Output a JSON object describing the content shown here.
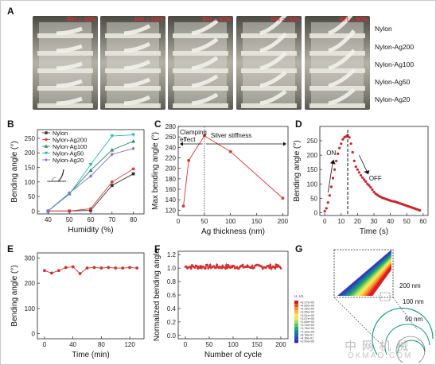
{
  "panels": {
    "A": "A",
    "B": "B",
    "C": "C",
    "D": "D",
    "E": "E",
    "F": "F",
    "G": "G"
  },
  "panel_a": {
    "rh_labels": [
      "RH = 40%",
      "RH = 50%",
      "RH = 60%",
      "RH = 70%",
      "RH = 80%"
    ],
    "samples": [
      "Nylon",
      "Nylon-Ag200",
      "Nylon-Ag100",
      "Nylon-Ag50",
      "Nylon-Ag20"
    ]
  },
  "panel_g": {
    "scale_labels": [
      "200 nm",
      "100 nm",
      "50 nm"
    ],
    "colorbar_labels": [
      "+5.27e+00",
      "+4.83e+00",
      "+4.39e+00",
      "+3.95e+00",
      "+3.51e+00",
      "+3.07e+00",
      "+2.63e+00",
      "+2.19e+00",
      "+1.76e+00",
      "+1.32e+00",
      "+8.78e-01",
      "+4.39e-01",
      "+0.00e+00"
    ],
    "colors": [
      "#d7191c",
      "#ef4b1f",
      "#fb8c2b",
      "#fdb54a",
      "#fee153",
      "#dbee5a",
      "#a3db5c",
      "#5fc262",
      "#2aa86d",
      "#178c86",
      "#1c6fa2",
      "#2849b5",
      "#2c2cb8"
    ]
  },
  "watermark": {
    "cn": "中 网 机 械",
    "en": "OKMAO.COM"
  },
  "chart_data": [
    {
      "id": "B",
      "type": "line",
      "xlabel": "Humidity (%)",
      "ylabel": "Bending angle (°)",
      "x": [
        40,
        50,
        60,
        70,
        80
      ],
      "xlim": [
        35,
        85
      ],
      "ylim": [
        -10,
        280
      ],
      "xticks": [
        40,
        50,
        60,
        70,
        80
      ],
      "yticks": [
        0,
        50,
        100,
        150,
        200,
        250
      ],
      "series": [
        {
          "name": "Nylon",
          "color": "#333333",
          "marker": "square",
          "values": [
            0,
            0,
            2,
            88,
            128
          ]
        },
        {
          "name": "Nylon-Ag200",
          "color": "#d93c3c",
          "marker": "circle",
          "values": [
            0,
            0,
            8,
            100,
            145
          ]
        },
        {
          "name": "Nylon-Ag100",
          "color": "#2a7f52",
          "marker": "triangle",
          "values": [
            0,
            60,
            140,
            210,
            240
          ]
        },
        {
          "name": "Nylon-Ag50",
          "color": "#2cb5b5",
          "marker": "down-triangle",
          "values": [
            0,
            58,
            160,
            258,
            262
          ]
        },
        {
          "name": "Nylon-Ag20",
          "color": "#8a6fc8",
          "marker": "diamond",
          "values": [
            0,
            62,
            120,
            195,
            215
          ]
        }
      ]
    },
    {
      "id": "C",
      "type": "line",
      "xlabel": "Ag thickness (nm)",
      "ylabel": "Max bending angle (°)",
      "x": [
        10,
        20,
        50,
        100,
        200
      ],
      "xlim": [
        0,
        210
      ],
      "ylim": [
        110,
        280
      ],
      "xticks": [
        0,
        50,
        100,
        150,
        200
      ],
      "yticks": [
        120,
        140,
        160,
        180,
        200,
        220,
        240,
        260,
        280
      ],
      "series": [
        {
          "name": "",
          "color": "#d23a3a",
          "values": [
            128,
            215,
            262,
            232,
            143
          ]
        }
      ],
      "annotations": [
        "Clamping effect",
        "Silver stiffness"
      ]
    },
    {
      "id": "D",
      "type": "scatter",
      "xlabel": "Time (s)",
      "ylabel": "Bending angle (°)",
      "xlim": [
        -3,
        63
      ],
      "ylim": [
        -10,
        300
      ],
      "xticks": [
        0,
        10,
        20,
        30,
        40,
        50,
        60
      ],
      "yticks": [
        0,
        50,
        100,
        150,
        200,
        250
      ],
      "series": [
        {
          "name": "",
          "color": "#c8262b",
          "x": [
            0,
            1,
            2,
            3,
            4,
            5,
            6,
            7,
            8,
            9,
            10,
            11,
            12,
            13,
            14,
            15,
            16,
            17,
            18,
            19,
            20,
            21,
            22,
            23,
            24,
            25,
            26,
            27,
            28,
            29,
            30,
            31,
            32,
            33,
            34,
            35,
            36,
            37,
            38,
            39,
            40,
            41,
            42,
            43,
            44,
            45,
            46,
            47,
            48,
            49,
            50,
            51,
            52,
            53,
            54,
            55,
            56,
            57,
            58
          ],
          "values": [
            5,
            15,
            35,
            60,
            90,
            120,
            150,
            180,
            205,
            225,
            240,
            255,
            262,
            265,
            270,
            262,
            240,
            210,
            180,
            160,
            150,
            140,
            130,
            122,
            115,
            108,
            100,
            95,
            88,
            80,
            72,
            66,
            62,
            58,
            55,
            52,
            50,
            48,
            46,
            44,
            42,
            40,
            39,
            38,
            36,
            34,
            32,
            30,
            28,
            26,
            24,
            22,
            20,
            18,
            16,
            14,
            12,
            10,
            8
          ]
        }
      ],
      "annotations": [
        "ON",
        "OFF"
      ]
    },
    {
      "id": "E",
      "type": "line",
      "xlabel": "Time (min)",
      "ylabel": "Bending angle (°)",
      "x": [
        0,
        10,
        20,
        30,
        40,
        50,
        60,
        70,
        80,
        90,
        100,
        110,
        120,
        130
      ],
      "xlim": [
        -10,
        140
      ],
      "ylim": [
        -20,
        320
      ],
      "xticks": [
        0,
        40,
        80,
        120
      ],
      "yticks": [
        0,
        100,
        200,
        300
      ],
      "series": [
        {
          "name": "",
          "color": "#cf2f2f",
          "values": [
            250,
            240,
            250,
            262,
            265,
            238,
            260,
            262,
            260,
            262,
            260,
            260,
            262,
            260
          ]
        }
      ]
    },
    {
      "id": "F",
      "type": "line",
      "xlabel": "Number of cycle",
      "ylabel": "Normalized bending angle",
      "xlim": [
        -15,
        215
      ],
      "ylim": [
        -0.05,
        1.25
      ],
      "xticks": [
        0,
        50,
        100,
        150,
        200
      ],
      "yticks": [
        0.0,
        0.2,
        0.4,
        0.6,
        0.8,
        1.0,
        1.2
      ],
      "series": [
        {
          "name": "",
          "color": "#d43030",
          "range": [
            0,
            200
          ],
          "mean": 1.02,
          "spread": 0.03
        }
      ]
    }
  ]
}
